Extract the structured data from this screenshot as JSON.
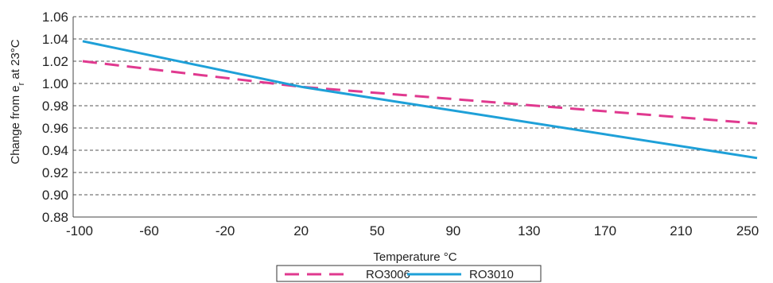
{
  "chart_data": {
    "type": "line",
    "xlabel": "Temperature °C",
    "ylabel": "Change from e",
    "ylabel_sub": "r",
    "ylabel_tail": " at 23°C",
    "x_ticks": [
      "-100",
      "-60",
      "-20",
      "20",
      "50",
      "90",
      "130",
      "170",
      "210",
      "250"
    ],
    "y_ticks": [
      0.88,
      0.9,
      0.92,
      0.94,
      0.96,
      0.98,
      1.0,
      1.02,
      1.04,
      1.06
    ],
    "y_tick_labels": [
      "0.88",
      "0.90",
      "0.92",
      "0.94",
      "0.96",
      "0.98",
      "1.00",
      "1.02",
      "1.04",
      "1.06"
    ],
    "xlim": [
      -100,
      250
    ],
    "ylim": [
      0.88,
      1.06
    ],
    "grid": "horizontal-dashed",
    "legend_position": "bottom",
    "series": [
      {
        "name": "RO3006",
        "color": "#e0398f",
        "style": "dashed",
        "x": [
          -95,
          20,
          250
        ],
        "y": [
          1.02,
          0.997,
          0.964
        ]
      },
      {
        "name": "RO3010",
        "color": "#1ea0d8",
        "style": "solid",
        "x": [
          -95,
          20,
          250
        ],
        "y": [
          1.038,
          0.997,
          0.933
        ]
      }
    ]
  }
}
